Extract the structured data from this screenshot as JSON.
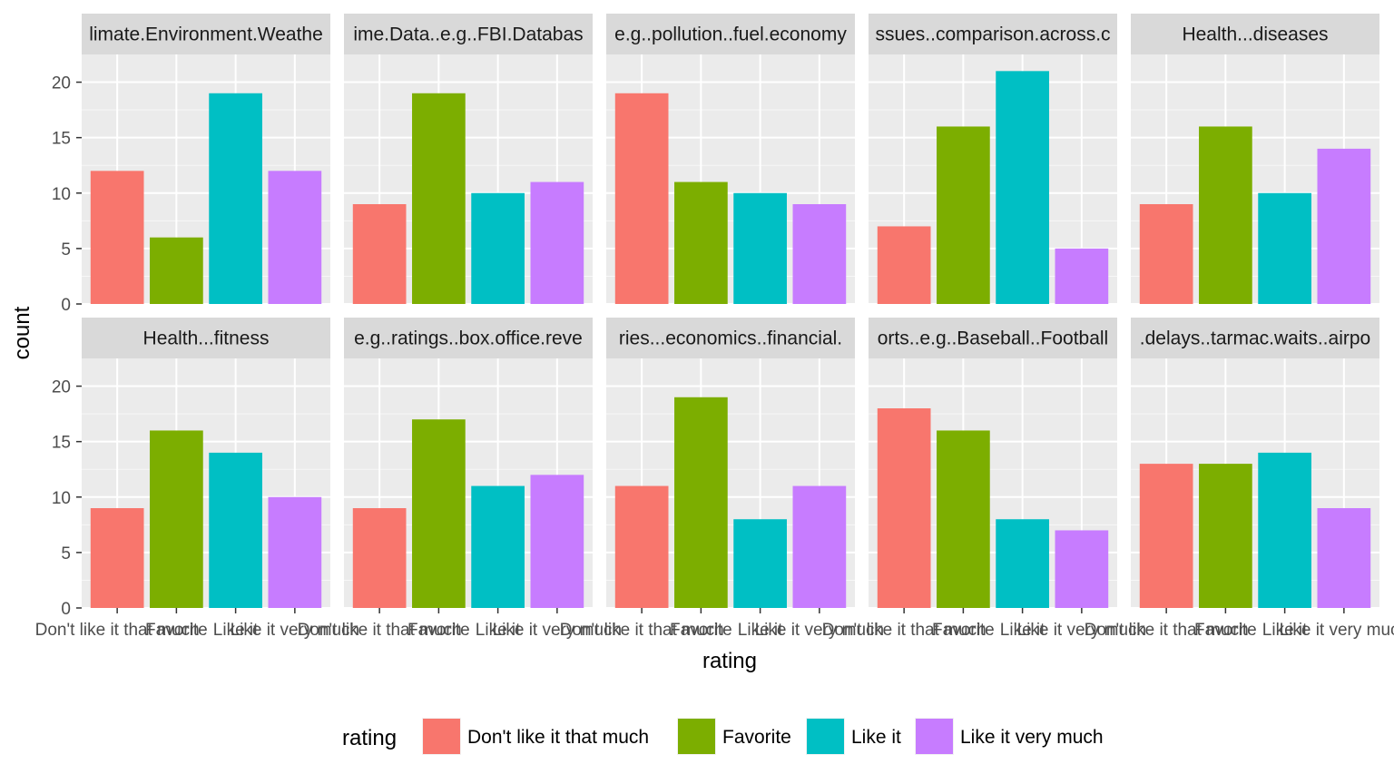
{
  "chart_data": {
    "type": "bar",
    "facet_layout": {
      "rows": 2,
      "cols": 5
    },
    "xlabel": "rating",
    "ylabel": "count",
    "ylim": [
      0,
      22.5
    ],
    "yticks": [
      0,
      5,
      10,
      15,
      20
    ],
    "grid": true,
    "legend": {
      "title": "rating",
      "position": "bottom",
      "entries": [
        {
          "label": "Don't like it that much",
          "color": "#F8766D"
        },
        {
          "label": "Favorite",
          "color": "#7CAE00"
        },
        {
          "label": "Like it",
          "color": "#00BFC4"
        },
        {
          "label": "Like it very much",
          "color": "#C77CFF"
        }
      ]
    },
    "categories": [
      "Don't like it that much",
      "Favorite",
      "Like it",
      "Like it very much"
    ],
    "colors": [
      "#F8766D",
      "#7CAE00",
      "#00BFC4",
      "#C77CFF"
    ],
    "panels": [
      {
        "label": "limate.Environment.Weathe",
        "values": [
          12,
          6,
          19,
          12
        ]
      },
      {
        "label": "ime.Data..e.g..FBI.Databas",
        "values": [
          9,
          19,
          10,
          11
        ]
      },
      {
        "label": "e.g..pollution..fuel.economy",
        "values": [
          19,
          11,
          10,
          9
        ]
      },
      {
        "label": "ssues..comparison.across.c",
        "values": [
          7,
          16,
          21,
          5
        ]
      },
      {
        "label": "Health...diseases",
        "values": [
          9,
          16,
          10,
          14
        ]
      },
      {
        "label": "Health...fitness",
        "values": [
          9,
          16,
          14,
          10
        ]
      },
      {
        "label": "e.g..ratings..box.office.reve",
        "values": [
          9,
          17,
          11,
          12
        ]
      },
      {
        "label": "ries...economics..financial.",
        "values": [
          11,
          19,
          8,
          11
        ]
      },
      {
        "label": "orts..e.g..Baseball..Football",
        "values": [
          18,
          16,
          8,
          7
        ]
      },
      {
        "label": ".delays..tarmac.waits..airpo",
        "values": [
          13,
          13,
          14,
          9
        ]
      }
    ]
  }
}
